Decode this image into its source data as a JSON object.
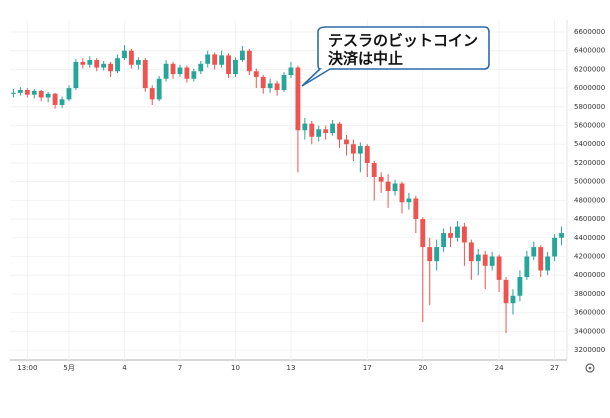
{
  "chart_data": {
    "type": "candlestick",
    "annotation": [
      "テスラのビットコイン",
      "決済は中止"
    ],
    "up_color": "#26a69a",
    "down_color": "#ef5350",
    "grid": true,
    "categories": [
      null,
      null,
      "13:00",
      null,
      null,
      null,
      null,
      null,
      "5月",
      null,
      null,
      null,
      null,
      null,
      null,
      null,
      "4",
      null,
      null,
      null,
      null,
      null,
      null,
      null,
      "7",
      null,
      null,
      null,
      null,
      null,
      null,
      null,
      "10",
      null,
      null,
      null,
      null,
      null,
      null,
      null,
      "13",
      null,
      null,
      null,
      null,
      null,
      null,
      null,
      null,
      null,
      null,
      "17",
      null,
      null,
      null,
      null,
      null,
      null,
      null,
      "20",
      null,
      null,
      null,
      null,
      null,
      null,
      null,
      null,
      null,
      null,
      "24",
      null,
      null,
      null,
      null,
      null,
      null,
      null,
      "27",
      null
    ],
    "open": [
      5940000,
      5950000,
      5980000,
      5930000,
      5970000,
      5900000,
      5940000,
      5820000,
      5880000,
      6000000,
      6280000,
      6250000,
      6300000,
      6220000,
      6260000,
      6180000,
      6320000,
      6400000,
      6250000,
      6300000,
      6000000,
      5880000,
      6100000,
      6260000,
      6150000,
      6220000,
      6100000,
      6180000,
      6260000,
      6360000,
      6250000,
      6350000,
      6150000,
      6300000,
      6400000,
      6180000,
      6120000,
      6000000,
      6050000,
      5980000,
      6140000,
      6220000,
      5550000,
      5620000,
      5480000,
      5560000,
      5520000,
      5620000,
      5450000,
      5400000,
      5300000,
      5380000,
      5200000,
      5050000,
      5000000,
      4900000,
      4980000,
      4780000,
      4820000,
      4600000,
      4300000,
      4150000,
      4300000,
      4450000,
      4400000,
      4520000,
      4350000,
      4150000,
      4220000,
      4100000,
      4200000,
      3950000,
      3700000,
      3780000,
      3980000,
      4200000,
      4300000,
      4050000,
      4200000,
      4400000
    ],
    "high": [
      5990000,
      6010000,
      6000000,
      5990000,
      5980000,
      5960000,
      5950000,
      5910000,
      6030000,
      6310000,
      6320000,
      6340000,
      6320000,
      6290000,
      6280000,
      6360000,
      6460000,
      6420000,
      6330000,
      6320000,
      6030000,
      6130000,
      6300000,
      6280000,
      6250000,
      6240000,
      6210000,
      6290000,
      6400000,
      6380000,
      6400000,
      6370000,
      6330000,
      6450000,
      6420000,
      6210000,
      6140000,
      6100000,
      6080000,
      6170000,
      6280000,
      6240000,
      5680000,
      5650000,
      5600000,
      5600000,
      5660000,
      5640000,
      5500000,
      5450000,
      5420000,
      5400000,
      5220000,
      5100000,
      5080000,
      5020000,
      5000000,
      4880000,
      4850000,
      4620000,
      4400000,
      4380000,
      4500000,
      4520000,
      4580000,
      4560000,
      4380000,
      4280000,
      4260000,
      4250000,
      4220000,
      3980000,
      3850000,
      4050000,
      4260000,
      4360000,
      4320000,
      4250000,
      4440000,
      4520000
    ],
    "low": [
      5900000,
      5920000,
      5900000,
      5890000,
      5860000,
      5850000,
      5780000,
      5790000,
      5860000,
      5980000,
      6210000,
      6220000,
      6180000,
      6190000,
      6120000,
      6160000,
      6300000,
      6210000,
      6200000,
      5960000,
      5820000,
      5860000,
      6070000,
      6100000,
      6120000,
      6060000,
      6070000,
      6150000,
      6220000,
      6200000,
      6220000,
      6110000,
      6120000,
      6280000,
      6140000,
      6000000,
      5940000,
      5950000,
      5920000,
      5960000,
      6110000,
      5100000,
      5450000,
      5400000,
      5430000,
      5450000,
      5490000,
      5360000,
      5280000,
      5220000,
      5100000,
      5050000,
      4800000,
      4880000,
      4720000,
      4850000,
      4660000,
      4700000,
      4450000,
      3500000,
      3680000,
      4050000,
      4250000,
      4300000,
      4360000,
      4100000,
      3950000,
      4000000,
      3850000,
      4050000,
      3820000,
      3380000,
      3580000,
      3720000,
      3950000,
      4160000,
      3980000,
      4000000,
      4150000,
      4320000
    ],
    "close": [
      5950000,
      5980000,
      5930000,
      5970000,
      5900000,
      5940000,
      5820000,
      5880000,
      6000000,
      6280000,
      6250000,
      6300000,
      6220000,
      6260000,
      6180000,
      6320000,
      6400000,
      6250000,
      6300000,
      6000000,
      5880000,
      6100000,
      6260000,
      6150000,
      6220000,
      6100000,
      6180000,
      6260000,
      6360000,
      6250000,
      6350000,
      6150000,
      6300000,
      6400000,
      6180000,
      6120000,
      6000000,
      6050000,
      5980000,
      6140000,
      6220000,
      5550000,
      5620000,
      5480000,
      5560000,
      5520000,
      5620000,
      5450000,
      5400000,
      5300000,
      5380000,
      5200000,
      5050000,
      5000000,
      4900000,
      4980000,
      4780000,
      4820000,
      4600000,
      4300000,
      4150000,
      4300000,
      4450000,
      4400000,
      4520000,
      4350000,
      4150000,
      4220000,
      4100000,
      4200000,
      3950000,
      3700000,
      3780000,
      3980000,
      4200000,
      4300000,
      4050000,
      4200000,
      4400000,
      4450000
    ],
    "ylim": [
      3200000,
      6600000
    ],
    "yticks": [
      3200000,
      3400000,
      3600000,
      3800000,
      4000000,
      4200000,
      4400000,
      4600000,
      4800000,
      5000000,
      5200000,
      5400000,
      5600000,
      5800000,
      6000000,
      6200000,
      6400000,
      6600000
    ]
  }
}
